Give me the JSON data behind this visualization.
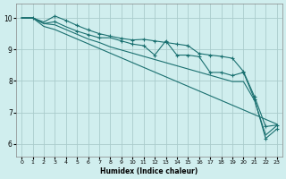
{
  "xlabel": "Humidex (Indice chaleur)",
  "bg_color": "#d0eeee",
  "grid_color": "#aacccc",
  "line_color": "#1a7070",
  "xlim": [
    -0.5,
    23.5
  ],
  "ylim": [
    5.6,
    10.45
  ],
  "yticks": [
    6,
    7,
    8,
    9,
    10
  ],
  "xticks": [
    0,
    1,
    2,
    3,
    4,
    5,
    6,
    7,
    8,
    9,
    10,
    11,
    12,
    13,
    14,
    15,
    16,
    17,
    18,
    19,
    20,
    21,
    22,
    23
  ],
  "series": [
    {
      "y": [
        10.0,
        10.0,
        9.87,
        10.06,
        9.92,
        9.76,
        9.62,
        9.5,
        9.42,
        9.35,
        9.3,
        9.32,
        9.27,
        9.22,
        9.17,
        9.12,
        8.87,
        8.82,
        8.78,
        8.72,
        8.3,
        7.5,
        6.55,
        6.6
      ],
      "marker": true,
      "markevery": [
        1,
        3,
        4,
        5,
        6,
        7,
        8,
        9,
        10,
        11,
        12,
        13,
        14,
        15,
        16,
        17,
        18,
        19,
        20,
        21,
        22,
        23
      ]
    },
    {
      "y": [
        10.0,
        10.0,
        9.82,
        9.88,
        9.72,
        9.58,
        9.47,
        9.37,
        9.37,
        9.27,
        9.17,
        9.12,
        8.82,
        9.27,
        8.82,
        8.82,
        8.77,
        8.27,
        8.27,
        8.17,
        8.27,
        7.42,
        6.17,
        6.47
      ],
      "marker": true,
      "markevery": [
        3,
        5,
        6,
        7,
        9,
        10,
        11,
        12,
        13,
        14,
        15,
        16,
        17,
        18,
        19,
        20,
        21,
        22,
        23
      ]
    },
    {
      "y": [
        10.0,
        10.0,
        9.82,
        9.78,
        9.63,
        9.48,
        9.33,
        9.22,
        9.08,
        8.98,
        8.88,
        8.78,
        8.68,
        8.58,
        8.48,
        8.38,
        8.28,
        8.18,
        8.08,
        7.98,
        7.98,
        7.38,
        6.28,
        6.58
      ],
      "marker": false,
      "markevery": []
    },
    {
      "y": [
        10.0,
        10.0,
        9.73,
        9.63,
        9.48,
        9.33,
        9.18,
        9.03,
        8.88,
        8.73,
        8.58,
        8.43,
        8.28,
        8.13,
        7.98,
        7.83,
        7.68,
        7.53,
        7.38,
        7.23,
        7.08,
        6.93,
        6.78,
        6.63
      ],
      "marker": false,
      "markevery": []
    }
  ]
}
